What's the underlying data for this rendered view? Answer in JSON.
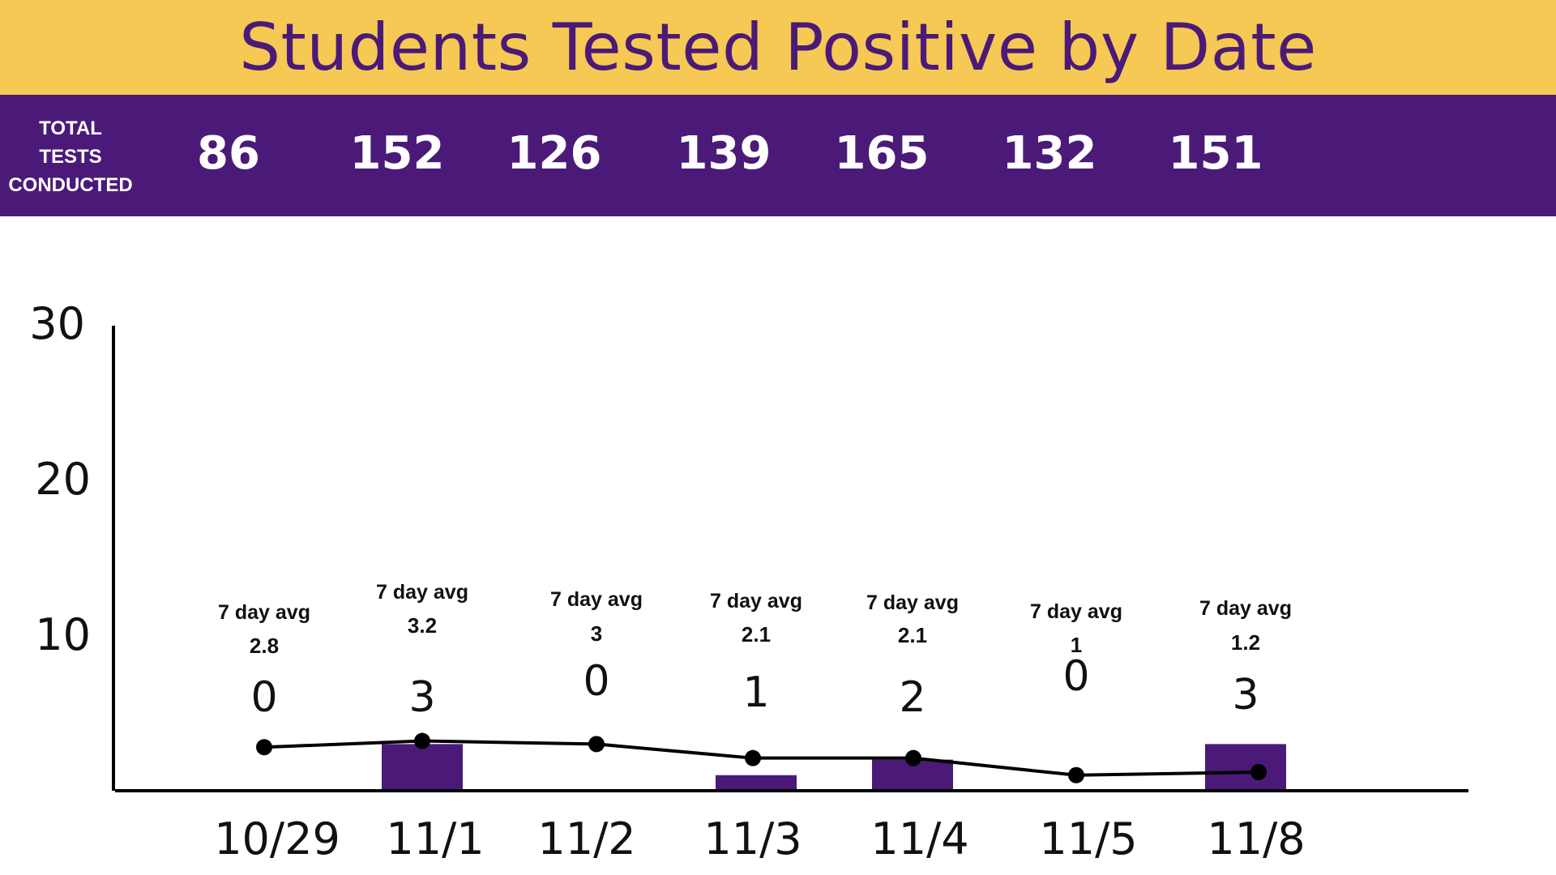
{
  "header": {
    "title": "Students Tested Positive by Date"
  },
  "totals": {
    "label_lines": [
      "TOTAL",
      "TESTS",
      "CONDUCTED"
    ],
    "values": [
      "86",
      "152",
      "126",
      "139",
      "165",
      "132",
      "151"
    ]
  },
  "colors": {
    "title_bar": "#f5c953",
    "title_text": "#4b1a78",
    "totals_bar": "#4b1a78",
    "bar": "#4b1a78",
    "line": "#000000",
    "axis": "#000000"
  },
  "chart_data": {
    "type": "bar",
    "title": "Students Tested Positive by Date",
    "categories": [
      "10/29",
      "11/1",
      "11/2",
      "11/3",
      "11/4",
      "11/5",
      "11/8"
    ],
    "series": [
      {
        "type": "bar",
        "values": [
          0,
          3,
          0,
          1,
          2,
          0,
          3
        ]
      },
      {
        "type": "line",
        "values": [
          2.8,
          3.2,
          3,
          2.1,
          2.1,
          1,
          1.2
        ]
      }
    ],
    "value_labels": [
      "0",
      "3",
      "0",
      "1",
      "2",
      "0",
      "3"
    ],
    "avg_caption": "7 day avg",
    "avg_labels": [
      "2.8",
      "3.2",
      "3",
      "2.1",
      "2.1",
      "1",
      "1.2"
    ],
    "yticks": [
      "10",
      "20",
      "30"
    ],
    "ylim": [
      0,
      30
    ],
    "grid": false,
    "legend": "none"
  }
}
